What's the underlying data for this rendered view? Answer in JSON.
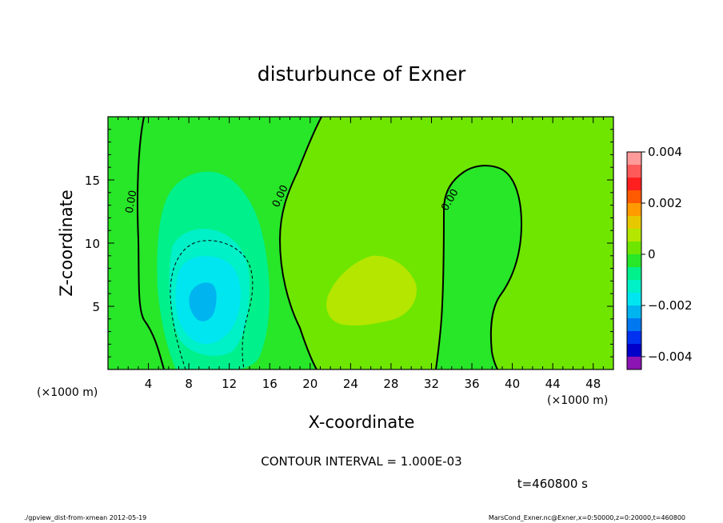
{
  "chart_data": {
    "type": "contour",
    "title": "disturbunce of Exner",
    "xlabel": "X-coordinate",
    "ylabel": "Z-coordinate",
    "x_unit": "(×1000 m)",
    "y_unit": "(×1000 m)",
    "xlim": [
      0,
      50
    ],
    "ylim": [
      0,
      20
    ],
    "x_ticks": [
      4,
      8,
      12,
      16,
      20,
      24,
      28,
      32,
      36,
      40,
      44,
      48
    ],
    "y_ticks": [
      5,
      10,
      15
    ],
    "colorbar": {
      "ticks": [
        "0.004",
        "0.002",
        "0",
        "−0.002",
        "−0.004"
      ],
      "range": [
        -0.004,
        0.004
      ],
      "levels": [
        {
          "from": 0.0035,
          "to": 0.004,
          "color": "#ff9a9a"
        },
        {
          "from": 0.003,
          "to": 0.0035,
          "color": "#ff5a5a"
        },
        {
          "from": 0.0025,
          "to": 0.003,
          "color": "#ff1f1f"
        },
        {
          "from": 0.002,
          "to": 0.0025,
          "color": "#ff5a00"
        },
        {
          "from": 0.0015,
          "to": 0.002,
          "color": "#ff9a00"
        },
        {
          "from": 0.001,
          "to": 0.0015,
          "color": "#e6c800"
        },
        {
          "from": 0.0005,
          "to": 0.001,
          "color": "#b4e600"
        },
        {
          "from": 0.0,
          "to": 0.0005,
          "color": "#6ee600"
        },
        {
          "from": -0.0005,
          "to": 0.0,
          "color": "#28e628"
        },
        {
          "from": -0.001,
          "to": -0.0005,
          "color": "#00f08c"
        },
        {
          "from": -0.0015,
          "to": -0.001,
          "color": "#00f0c8"
        },
        {
          "from": -0.002,
          "to": -0.0015,
          "color": "#00e6f0"
        },
        {
          "from": -0.0025,
          "to": -0.002,
          "color": "#00b4f0"
        },
        {
          "from": -0.003,
          "to": -0.0025,
          "color": "#0078f0"
        },
        {
          "from": -0.0035,
          "to": -0.003,
          "color": "#0032f0"
        },
        {
          "from": -0.004,
          "to": -0.0035,
          "color": "#0000c8"
        },
        {
          "from": -0.0045,
          "to": -0.004,
          "color": "#8c14b4"
        }
      ]
    },
    "contour_labels": [
      "0.00",
      "0.00",
      "0.00"
    ],
    "contour_interval_text": "CONTOUR INTERVAL = 1.000E-03",
    "time_text": "t=460800 s",
    "footer_left": "./gpview_dist-from-xmean  2012-05-19",
    "footer_right": "MarsCond_Exner.nc@Exner,x=0:50000,z=0:20000,t=460800"
  }
}
